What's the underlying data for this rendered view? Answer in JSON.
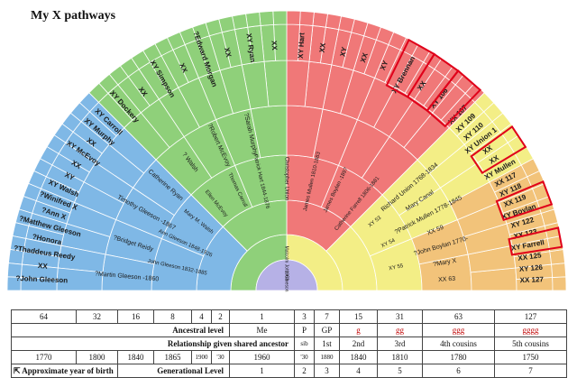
{
  "title": "My X pathways",
  "center": {
    "label": "Malcolm John Gleeson",
    "year": "1963-"
  },
  "names_left": [
    "?John Gleeson",
    "XX",
    "?Thaddeus Reedy",
    "?Honora",
    "?Matthew Gleeson",
    "?Ann X",
    "?Winifred X",
    "XY Walsh",
    "XY",
    "XX",
    "XY McEvoy",
    "XX",
    "XY Murphy",
    "XY Carroll"
  ],
  "names_top_green": [
    "XY Dockery",
    "XX",
    "XY Simpson",
    "XX",
    "?Edward Morgan",
    "XX",
    "XY Ryan",
    "XX"
  ],
  "names_top_red": [
    "XY Hart",
    "XX",
    "XY",
    "XX",
    "XY",
    "XY Brennan",
    "XX",
    "XY 106"
  ],
  "names_right": [
    "XX 107",
    "XY 109",
    "XY 110",
    "XY Union 1",
    "XX",
    "XX",
    "XY Mullen",
    "XX 117",
    "XY 118",
    "XX 119",
    "XY Boylan",
    "XY 122",
    "XX 123",
    "XY Farrell",
    "XX 125",
    "XY 126",
    "XX 127"
  ],
  "names_mid_left": [
    "?Martin Gleeson -1860",
    "?Bridget Reidy",
    "Timothy Gleeson -1867",
    "Catherine Ryan",
    "? Walsh",
    "?Robert McEvoy",
    "?Sarah Murphy"
  ],
  "names_mid_right": [
    "Richard Union 1768-1834",
    "Mary Canal",
    "?Patrick Mullen 1778-1845",
    "XX 59",
    "?John Boylan 1770-",
    "?Mary X",
    "XX 63"
  ],
  "names_inner": [
    "John Gleeson 1832-1885",
    "Ann Gleeson 1848-1926",
    "Mary M. Walsh",
    "Ellen McEvoy",
    "Thomas Carroll",
    "Patrick Hart 1844-1876",
    "Christopher Union",
    "James Mullen 1810-1883",
    "James Boylan -1897",
    "Catherine Farrell 1806-1881",
    "XY 53",
    "XY 54",
    "XY 55"
  ],
  "table": {
    "row1": [
      "64",
      "32",
      "16",
      "8",
      "4",
      "2",
      "1",
      "3",
      "7",
      "15",
      "31",
      "63",
      "127"
    ],
    "row2_label": "Ancestral level",
    "row2": [
      "Me",
      "P",
      "GP",
      "g",
      "gg",
      "ggg",
      "gggg"
    ],
    "row3_label": "Relationship given shared ancestor",
    "row3": [
      "sib",
      "1st",
      "2nd",
      "3rd",
      "4th cousins",
      "5th cousins"
    ],
    "row4": [
      "1770",
      "1800",
      "1840",
      "1865",
      "1900",
      "'30",
      "1960",
      "'30",
      "1880",
      "1840",
      "1810",
      "1780",
      "1750"
    ],
    "row5_left": "Approximate year of birth",
    "row5_label": "Generational Level",
    "row5": [
      "1",
      "2",
      "3",
      "4",
      "5",
      "6",
      "7"
    ]
  },
  "colors": {
    "blue": "#7fb8e6",
    "green": "#8fd07a",
    "red": "#f07878",
    "yellow": "#f3ee86",
    "orange": "#f2c37a",
    "center": "#b6b1e6",
    "highlight": "#e0001a"
  }
}
